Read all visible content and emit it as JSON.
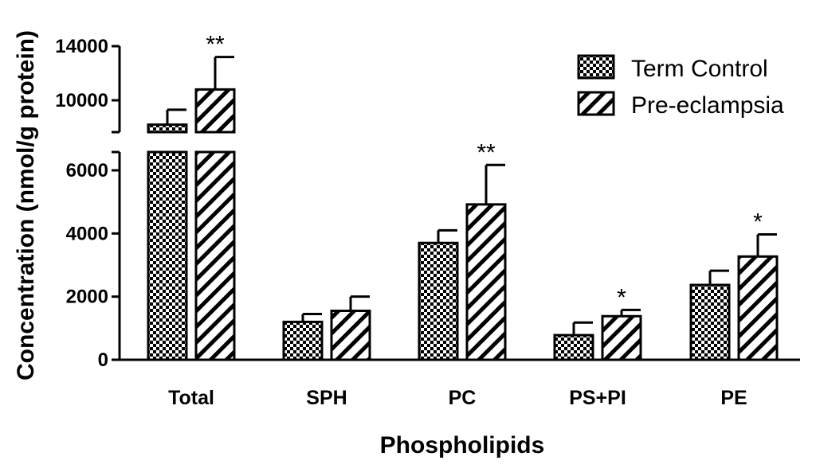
{
  "chart_data": {
    "type": "bar",
    "xlabel": "Phospholipids",
    "ylabel": "Concentration (nmol/g protein)",
    "categories": [
      "Total",
      "SPH",
      "PC",
      "PS+PI",
      "PE"
    ],
    "series": [
      {
        "name": "Term Control",
        "pattern": "checkered",
        "values": [
          8200,
          1200,
          3700,
          780,
          2370
        ],
        "errors": [
          1100,
          250,
          400,
          400,
          450
        ]
      },
      {
        "name": "Pre-eclampsia",
        "pattern": "hatched",
        "values": [
          10800,
          1550,
          4920,
          1380,
          3270
        ],
        "errors": [
          2400,
          450,
          1250,
          200,
          700
        ]
      }
    ],
    "significance": [
      {
        "category": "Total",
        "series": "Pre-eclampsia",
        "mark": "**"
      },
      {
        "category": "PC",
        "series": "Pre-eclampsia",
        "mark": "**"
      },
      {
        "category": "PS+PI",
        "series": "Pre-eclampsia",
        "mark": "*"
      },
      {
        "category": "PE",
        "series": "Pre-eclampsia",
        "mark": "*"
      }
    ],
    "y_axis": {
      "broken": true,
      "lower_segment": {
        "range": [
          0,
          6500
        ],
        "ticks": [
          0,
          2000,
          4000,
          6000
        ]
      },
      "upper_segment": {
        "range": [
          7500,
          14000
        ],
        "ticks": [
          10000,
          14000
        ]
      }
    },
    "tick_labels": [
      "0",
      "2000",
      "4000",
      "6000",
      "10000",
      "14000"
    ],
    "legend_position": "top-right",
    "grid": false
  }
}
